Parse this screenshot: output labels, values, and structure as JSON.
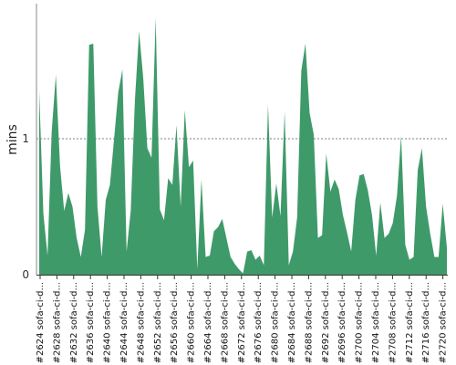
{
  "chart_data": {
    "type": "area",
    "title": "",
    "xlabel": "",
    "ylabel": "mins",
    "ylim": [
      0,
      2
    ],
    "yticks": [
      0,
      1
    ],
    "grid": "dashed line at y=1",
    "color": "#3f9a6a",
    "xtick_labels": [
      "#2624 sofa-ci-d...",
      "#2628 sofa-ci-d...",
      "#2632 sofa-ci-d...",
      "#2636 sofa-ci-d...",
      "#2640 sofa-ci-d...",
      "#2644 sofa-ci-d...",
      "#2648 sofa-ci-d...",
      "#2652 sofa-ci-d...",
      "#2656 sofa-ci-d...",
      "#2660 sofa-ci-d...",
      "#2664 sofa-ci-d...",
      "#2668 sofa-ci-d...",
      "#2672 sofa-ci-d...",
      "#2676 sofa-ci-d...",
      "#2680 sofa-ci-d...",
      "#2684 sofa-ci-d...",
      "#2688 sofa-ci-d...",
      "#2692 sofa-ci-d...",
      "#2696 sofa-ci-d...",
      "#2700 sofa-ci-d...",
      "#2704 sofa-ci-d...",
      "#2708 sofa-ci-d...",
      "#2712 sofa-ci-d...",
      "#2716 sofa-ci-d...",
      "#2720 sofa-ci-d..."
    ],
    "series": [
      {
        "values": [
          1.35,
          0.45,
          0.14,
          1.05,
          1.47,
          0.8,
          0.47,
          0.6,
          0.5,
          0.27,
          0.13,
          0.33,
          1.69,
          1.7,
          0.5,
          0.13,
          0.55,
          0.66,
          1.0,
          1.34,
          1.51,
          0.17,
          0.47,
          1.28,
          1.79,
          1.45,
          0.93,
          0.86,
          1.89,
          0.48,
          0.4,
          0.71,
          0.66,
          1.1,
          0.5,
          1.21,
          0.79,
          0.84,
          0.04,
          0.7,
          0.13,
          0.14,
          0.32,
          0.35,
          0.41,
          0.27,
          0.13,
          0.08,
          0.04,
          0.01,
          0.17,
          0.18,
          0.11,
          0.14,
          0.07,
          1.25,
          0.42,
          0.67,
          0.43,
          1.2,
          0.07,
          0.17,
          0.42,
          1.5,
          1.7,
          1.19,
          1.03,
          0.27,
          0.29,
          0.89,
          0.61,
          0.7,
          0.63,
          0.44,
          0.31,
          0.17,
          0.55,
          0.73,
          0.74,
          0.62,
          0.44,
          0.14,
          0.53,
          0.27,
          0.3,
          0.38,
          0.58,
          1.02,
          0.22,
          0.11,
          0.13,
          0.77,
          0.93,
          0.5,
          0.3,
          0.13,
          0.13,
          0.52,
          0.2
        ]
      }
    ]
  }
}
